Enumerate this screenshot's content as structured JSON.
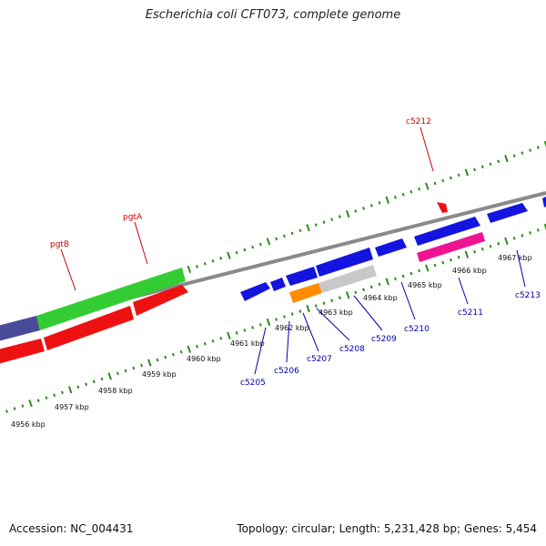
{
  "title": "Escherichia coli CFT073, complete genome",
  "footer": {
    "accession": "Accession: NC_004431",
    "summary": "Topology: circular; Length: 5,231,428 bp; Genes: 5,454"
  },
  "colors": {
    "backbone": "#8a8a8a",
    "tick": "#2f8a1f",
    "forward_label": "#cc0000",
    "reverse_label": "#0000aa",
    "blue": "#1414e0",
    "green": "#33cc33",
    "red": "#ee1111",
    "slate": "#4a4a9a",
    "magenta": "#ee1493",
    "orange": "#ff8c00",
    "gray_gene": "#c8c8c8"
  },
  "scale_labels": [
    "4956 kbp",
    "4957 kbp",
    "4958 kbp",
    "4959 kbp",
    "4960 kbp",
    "4961 kbp",
    "4962 kbp",
    "4963 kbp",
    "4964 kbp",
    "4965 kbp",
    "4966 kbp",
    "4967 kbp"
  ],
  "forward_gene_labels": [
    "pgtB",
    "pgtA",
    "c5212"
  ],
  "reverse_gene_labels": [
    "c5205",
    "c5206",
    "c5207",
    "c5208",
    "c5209",
    "c5210",
    "c5211",
    "c5213"
  ]
}
